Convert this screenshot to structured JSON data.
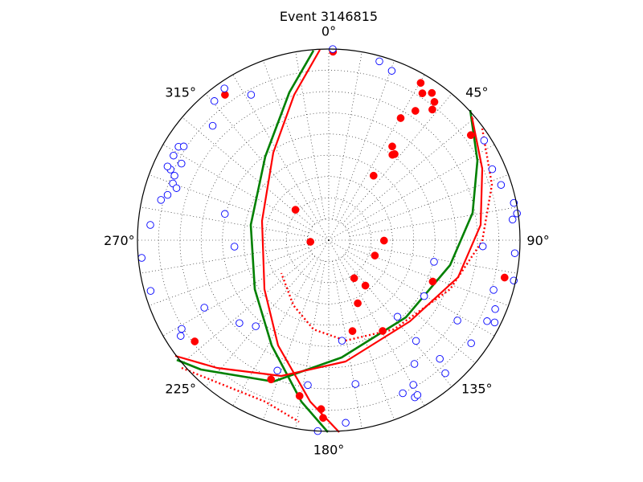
{
  "chart_data": {
    "type": "scatter",
    "projection": "polar (stereonet focal-mechanism plot)",
    "title": "Event 3146815",
    "azimuth_labels": [
      "0°",
      "45°",
      "90°",
      "135°",
      "180°",
      "225°",
      "270°",
      "315°"
    ],
    "grid": "dotted",
    "legend": "none",
    "colors": {
      "compressional": "#ff0000",
      "dilatational": "#0000ff",
      "best_plane": "#008000",
      "alternative_planes": "#ff0000"
    },
    "series": [
      {
        "marker": "filled-circle",
        "color": "#ff0000",
        "points": [
          [
            1.3,
            0.986
          ],
          [
            30.3,
            0.953
          ],
          [
            32.5,
            0.911
          ],
          [
            35.0,
            0.94
          ],
          [
            37.4,
            0.91
          ],
          [
            38.4,
            0.872
          ],
          [
            33.8,
            0.814
          ],
          [
            30.5,
            0.741
          ],
          [
            34.1,
            0.592
          ],
          [
            37.4,
            0.567
          ],
          [
            36.7,
            0.557
          ],
          [
            34.8,
            0.411
          ],
          [
            324.5,
            0.934
          ],
          [
            312.5,
            0.236
          ],
          [
            53.5,
            0.924
          ],
          [
            265.0,
            0.096
          ],
          [
            90.4,
            0.289
          ],
          [
            108.4,
            0.254
          ],
          [
            146.2,
            0.239
          ],
          [
            141.1,
            0.305
          ],
          [
            102.0,
            0.94
          ],
          [
            155.3,
            0.363
          ],
          [
            165.4,
            0.491
          ],
          [
            149.3,
            0.552
          ],
          [
            111.7,
            0.585
          ],
          [
            232.9,
            0.878
          ],
          [
            202.5,
            0.788
          ],
          [
            190.6,
            0.829
          ],
          [
            182.6,
            0.884
          ],
          [
            181.8,
            0.93
          ]
        ]
      },
      {
        "marker": "open-circle",
        "color": "#0000ff",
        "points": [
          [
            1.2,
            1.0
          ],
          [
            15.8,
            0.972
          ],
          [
            20.4,
            0.945
          ],
          [
            284.2,
            0.56
          ],
          [
            331.9,
            0.862
          ],
          [
            314.6,
            0.852
          ],
          [
            320.6,
            0.942
          ],
          [
            325.5,
            0.963
          ],
          [
            301.9,
            0.925
          ],
          [
            302.9,
            0.903
          ],
          [
            298.6,
            0.924
          ],
          [
            294.1,
            0.906
          ],
          [
            297.5,
            0.868
          ],
          [
            292.7,
            0.874
          ],
          [
            290.0,
            0.867
          ],
          [
            294.6,
            0.927
          ],
          [
            288.9,
            0.841
          ],
          [
            285.7,
            0.875
          ],
          [
            283.5,
            0.902
          ],
          [
            274.9,
            0.936
          ],
          [
            264.6,
            0.982
          ],
          [
            254.1,
            0.968
          ],
          [
            238.9,
            0.898
          ],
          [
            237.1,
            0.922
          ],
          [
            241.5,
            0.74
          ],
          [
            266.1,
            0.494
          ],
          [
            220.3,
            0.59
          ],
          [
            227.1,
            0.637
          ],
          [
            201.5,
            0.733
          ],
          [
            188.2,
            0.766
          ],
          [
            172.5,
            0.53
          ],
          [
            138.1,
            0.538
          ],
          [
            169.5,
            0.765
          ],
          [
            154.2,
            0.889
          ],
          [
            151.3,
            0.937
          ],
          [
            150.2,
            0.933
          ],
          [
            149.7,
            0.876
          ],
          [
            136.9,
            0.85
          ],
          [
            138.8,
            0.925
          ],
          [
            174.7,
            0.959
          ],
          [
            183.3,
            1.0
          ],
          [
            122.0,
            0.793
          ],
          [
            125.9,
            0.919
          ],
          [
            117.1,
            0.93
          ],
          [
            116.4,
            0.968
          ],
          [
            112.5,
            0.942
          ],
          [
            106.8,
            0.9
          ],
          [
            102.3,
            0.99
          ],
          [
            94.0,
            0.975
          ],
          [
            81.9,
            0.994
          ],
          [
            83.6,
            0.967
          ],
          [
            78.6,
            0.987
          ],
          [
            72.2,
            0.946
          ],
          [
            66.5,
            0.932
          ],
          [
            57.3,
            0.965
          ],
          [
            145.3,
            0.787
          ],
          [
            92.3,
            0.806
          ],
          [
            120.4,
            0.578
          ],
          [
            101.6,
            0.562
          ],
          [
            139.1,
            0.697
          ]
        ]
      }
    ]
  }
}
